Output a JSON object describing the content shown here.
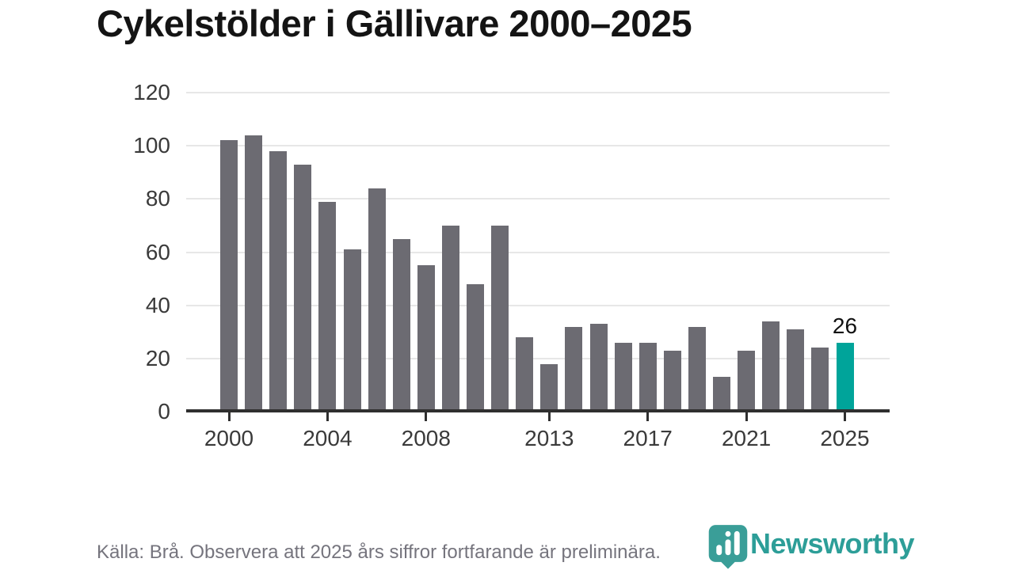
{
  "header": {
    "title": "Cykelstölder i Gällivare 2000–2025"
  },
  "chart_data": {
    "type": "bar",
    "title": "Cykelstölder i Gällivare 2000–2025",
    "categories": [
      2000,
      2001,
      2002,
      2003,
      2004,
      2005,
      2006,
      2007,
      2008,
      2009,
      2010,
      2011,
      2012,
      2013,
      2014,
      2015,
      2016,
      2017,
      2018,
      2019,
      2020,
      2021,
      2022,
      2023,
      2024,
      2025
    ],
    "values": [
      102,
      104,
      98,
      93,
      79,
      61,
      84,
      65,
      55,
      70,
      48,
      70,
      28,
      18,
      32,
      33,
      26,
      26,
      23,
      32,
      13,
      23,
      34,
      31,
      24,
      26
    ],
    "xlabel": "",
    "ylabel": "",
    "ylim": [
      0,
      120
    ],
    "yticks": [
      0,
      20,
      40,
      60,
      80,
      100,
      120
    ],
    "xtick_labels": [
      "2000",
      "2004",
      "2008",
      "2013",
      "2017",
      "2021",
      "2025"
    ],
    "grid": "horizontal-only",
    "legend": "none",
    "highlight_index": 25,
    "colors": {
      "bar": "#6c6b72",
      "highlight": "#00a49a"
    },
    "annotation": {
      "index": 25,
      "text": "26"
    }
  },
  "footer": {
    "text": "Källa: Brå. Observera att 2025 års siffror fortfarande är preliminära."
  },
  "logo": {
    "wordmark": "Newsworthy",
    "icon": "newsworthy-bubble-barchart-icon"
  }
}
